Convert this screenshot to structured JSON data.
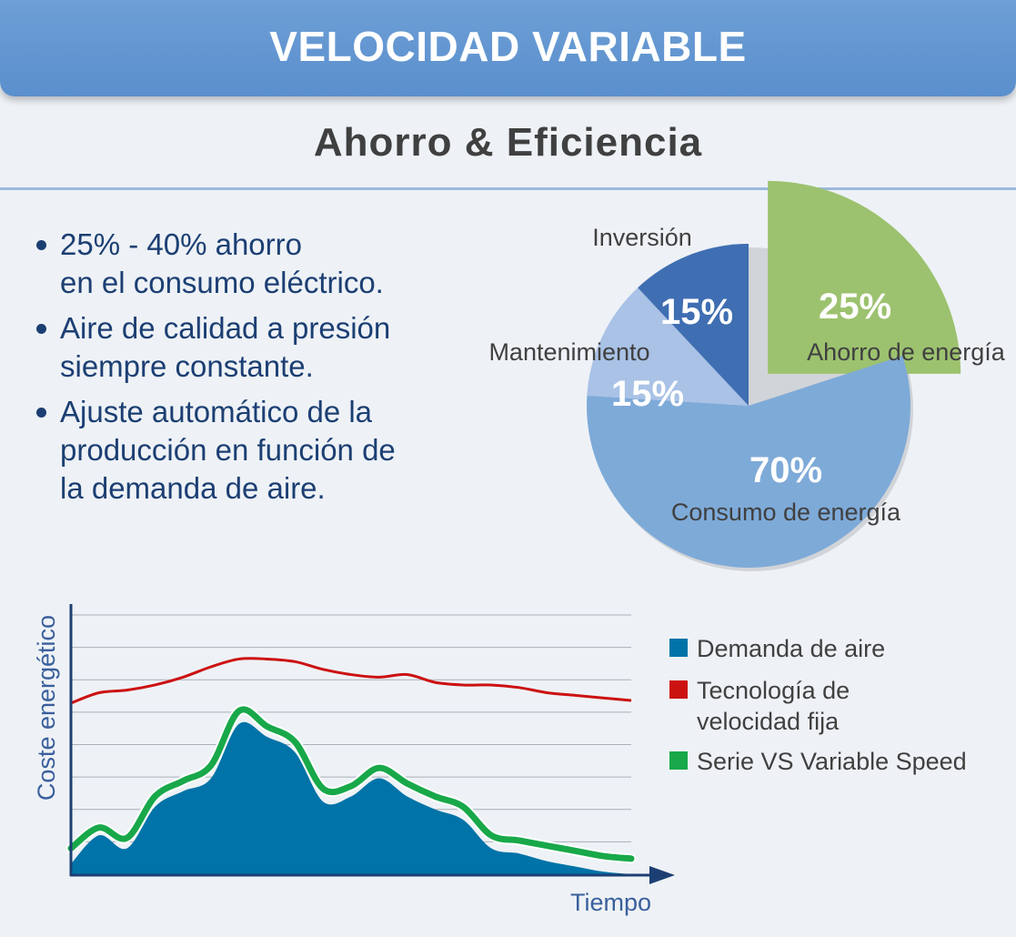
{
  "header": {
    "title": "VELOCIDAD VARIABLE"
  },
  "subtitle": "Ahorro & Eficiencia",
  "bullets": [
    {
      "lines": [
        "25% - 40% ahorro",
        "en el consumo eléctrico."
      ]
    },
    {
      "lines": [
        "Aire de calidad a presión",
        "siempre constante."
      ]
    },
    {
      "lines": [
        "Ajuste automático de la",
        "producción en función de",
        "la demanda de aire."
      ]
    }
  ],
  "colors": {
    "header": "#5b8fcd",
    "text_dark_blue": "#1c3f73",
    "pie_consumo": "#7eaad8",
    "pie_mantenimiento": "#a9c2e6",
    "pie_inversion": "#3f6eb2",
    "pie_ahorro": "#9cc26f",
    "demanda": "#0073a8",
    "velocidad_fija": "#cc1111",
    "variable_speed": "#18a84a"
  },
  "chart_data": [
    {
      "type": "pie",
      "slices": [
        {
          "label": "Ahorro de energía",
          "value": 25,
          "value_label": "25%",
          "exploded": true
        },
        {
          "label": "Consumo de energía",
          "value": 70,
          "value_label": "70%"
        },
        {
          "label": "Mantenimiento",
          "value": 15,
          "value_label": "15%"
        },
        {
          "label": "Inversión",
          "value": 15,
          "value_label": "15%"
        }
      ]
    },
    {
      "type": "line",
      "xlabel": "Tiempo",
      "ylabel": "Coste energético",
      "grid": true,
      "x": [
        0,
        5,
        10,
        15,
        20,
        25,
        30,
        35,
        40,
        45,
        50,
        55,
        60,
        65,
        70,
        75,
        80,
        85,
        90,
        95,
        100
      ],
      "series": [
        {
          "name": "Demanda de aire",
          "kind": "area",
          "values": [
            4,
            15,
            10,
            26,
            32,
            37,
            58,
            53,
            47,
            28,
            30,
            37,
            30,
            25,
            21,
            10,
            8,
            5,
            3,
            1,
            0
          ]
        },
        {
          "name": "Tecnología de velocidad fija",
          "kind": "line",
          "values": [
            66,
            70,
            71,
            73,
            76,
            80,
            83,
            83,
            82,
            79,
            77,
            76,
            77,
            74,
            73,
            73,
            72,
            70,
            69,
            68,
            67
          ]
        },
        {
          "name": "Serie VS Variable Speed",
          "kind": "line",
          "values": [
            10,
            18,
            14,
            30,
            36,
            42,
            63,
            57,
            51,
            33,
            34,
            41,
            35,
            30,
            26,
            15,
            13,
            11,
            9,
            7,
            6
          ]
        }
      ],
      "legend": [
        "Demanda de aire",
        "Tecnología de\nvelocidad fija",
        "Serie VS Variable Speed"
      ]
    }
  ]
}
